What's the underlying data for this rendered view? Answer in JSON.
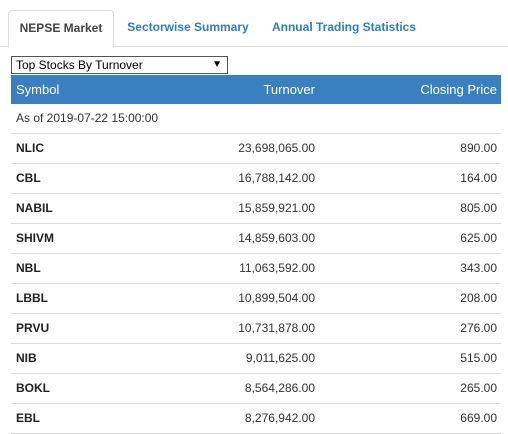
{
  "tabs": [
    {
      "label": "NEPSE Market"
    },
    {
      "label": "Sectorwise Summary"
    },
    {
      "label": "Annual Trading Statistics"
    }
  ],
  "filter": {
    "selected": "Top Stocks By Turnover",
    "arrow": "▼"
  },
  "table": {
    "headers": {
      "symbol": "Symbol",
      "turnover": "Turnover",
      "closing_price": "Closing Price"
    },
    "as_of": "As of 2019-07-22 15:00:00",
    "rows": [
      {
        "symbol": "NLIC",
        "turnover": "23,698,065.00",
        "closing_price": "890.00"
      },
      {
        "symbol": "CBL",
        "turnover": "16,788,142.00",
        "closing_price": "164.00"
      },
      {
        "symbol": "NABIL",
        "turnover": "15,859,921.00",
        "closing_price": "805.00"
      },
      {
        "symbol": "SHIVM",
        "turnover": "14,859,603.00",
        "closing_price": "625.00"
      },
      {
        "symbol": "NBL",
        "turnover": "11,063,592.00",
        "closing_price": "343.00"
      },
      {
        "symbol": "LBBL",
        "turnover": "10,899,504.00",
        "closing_price": "208.00"
      },
      {
        "symbol": "PRVU",
        "turnover": "10,731,878.00",
        "closing_price": "276.00"
      },
      {
        "symbol": "NIB",
        "turnover": "9,011,625.00",
        "closing_price": "515.00"
      },
      {
        "symbol": "BOKL",
        "turnover": "8,564,286.00",
        "closing_price": "265.00"
      },
      {
        "symbol": "EBL",
        "turnover": "8,276,942.00",
        "closing_price": "669.00"
      }
    ]
  }
}
